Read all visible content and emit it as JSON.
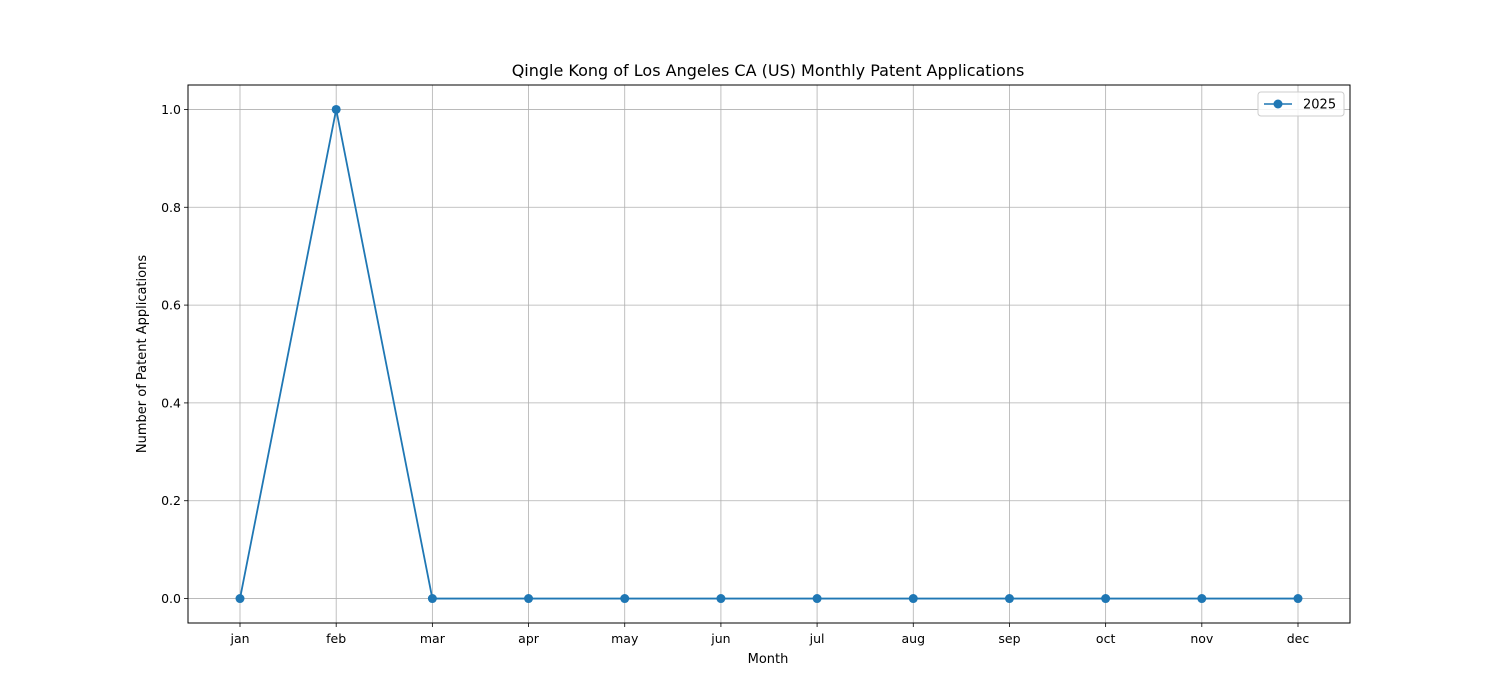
{
  "chart_data": {
    "type": "line",
    "title": "Qingle Kong of Los Angeles CA (US) Monthly Patent Applications",
    "xlabel": "Month",
    "ylabel": "Number of Patent Applications",
    "categories": [
      "jan",
      "feb",
      "mar",
      "apr",
      "may",
      "jun",
      "jul",
      "aug",
      "sep",
      "oct",
      "nov",
      "dec"
    ],
    "ylim": [
      -0.05,
      1.05
    ],
    "yticks": [
      "0.0",
      "0.2",
      "0.4",
      "0.6",
      "0.8",
      "1.0"
    ],
    "grid": true,
    "legend_position": "top-right",
    "series": [
      {
        "name": "2025",
        "color": "#1f77b4",
        "values": [
          0,
          1,
          0,
          0,
          0,
          0,
          0,
          0,
          0,
          0,
          0,
          0
        ]
      }
    ]
  }
}
